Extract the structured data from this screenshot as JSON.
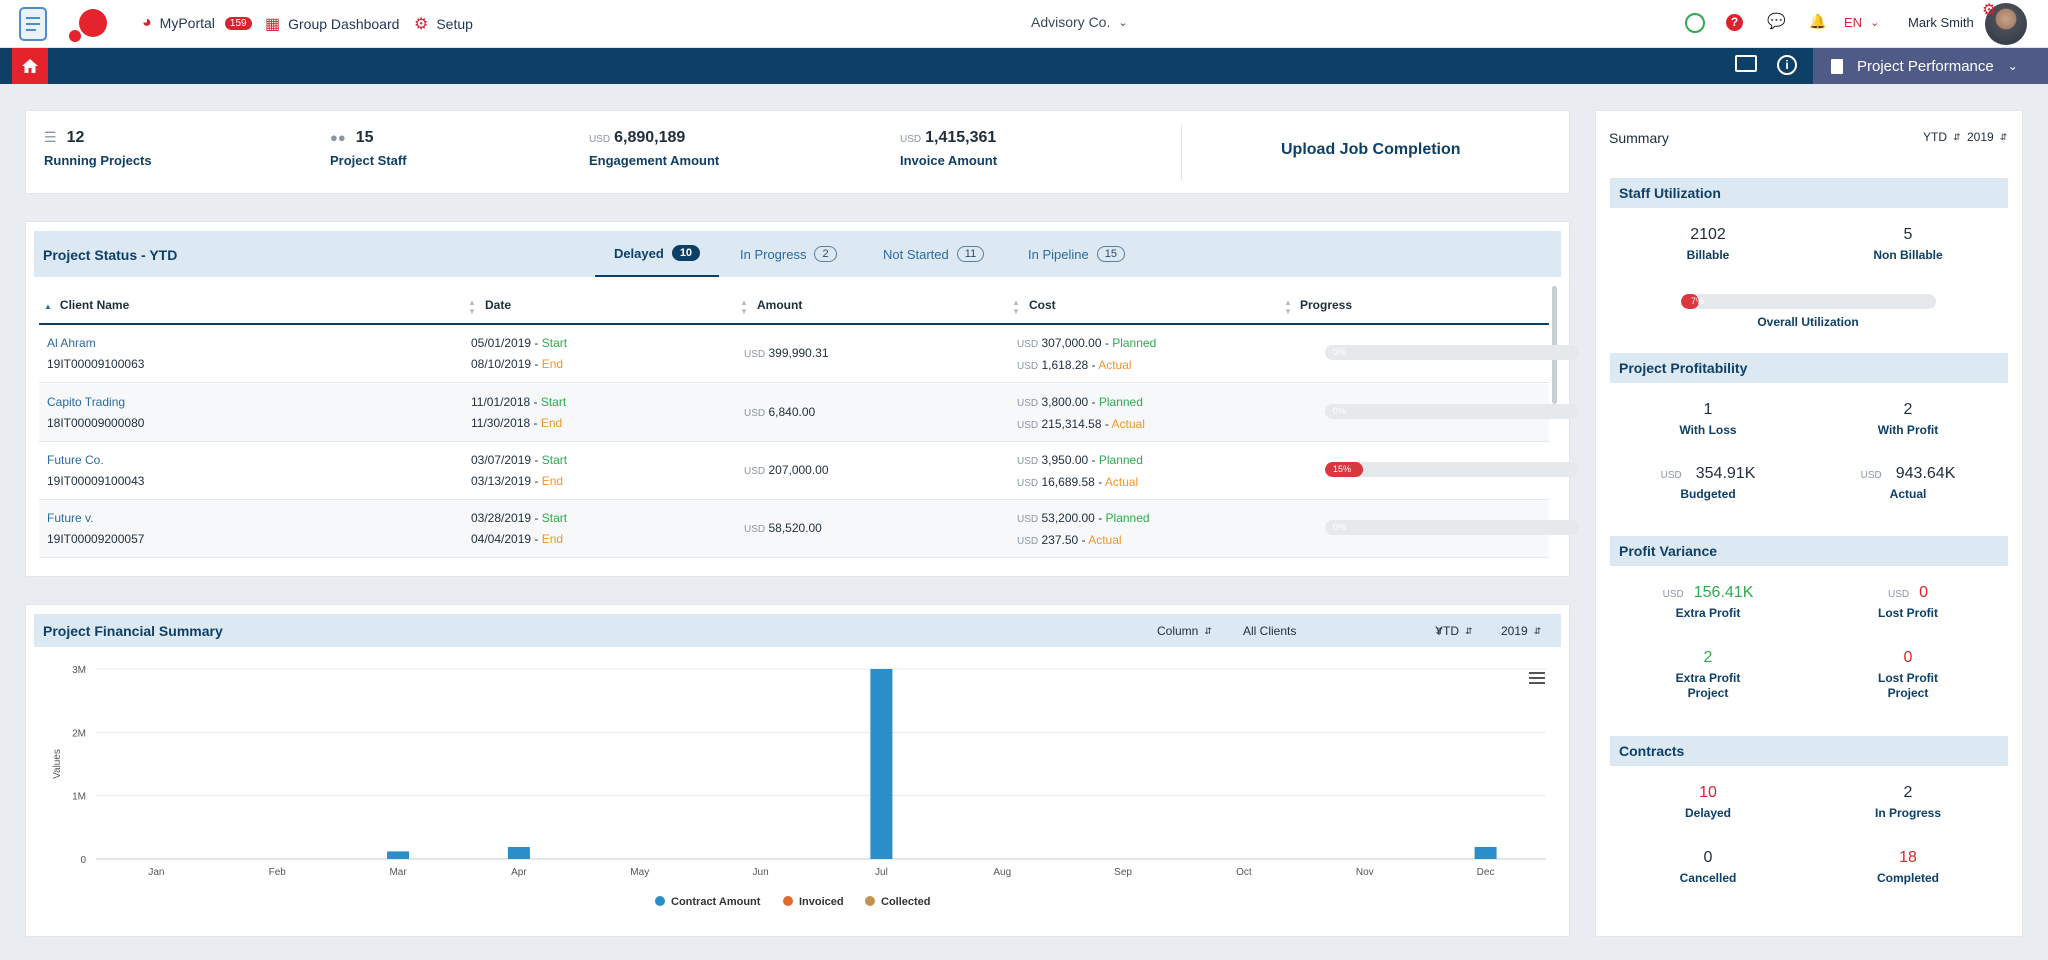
{
  "topbar": {
    "my_portal": "MyPortal",
    "my_portal_badge": "159",
    "group_dashboard": "Group Dashboard",
    "setup": "Setup",
    "company": "Advisory Co.",
    "language": "EN",
    "user": "Mark Smith"
  },
  "navbar": {
    "page_selector": "Project Performance"
  },
  "kpis": [
    {
      "value": "12",
      "currency": "",
      "label": "Running Projects",
      "icon": "list-icon"
    },
    {
      "value": "15",
      "currency": "",
      "label": "Project Staff",
      "icon": "people-icon"
    },
    {
      "value": "6,890,189",
      "currency": "USD",
      "label": "Engagement Amount"
    },
    {
      "value": "1,415,361",
      "currency": "USD",
      "label": "Invoice Amount"
    }
  ],
  "upload_label": "Upload Job Completion",
  "project_status": {
    "title": "Project Status - YTD",
    "tabs": [
      {
        "label": "Delayed",
        "count": "10"
      },
      {
        "label": "In Progress",
        "count": "2"
      },
      {
        "label": "Not Started",
        "count": "11"
      },
      {
        "label": "In Pipeline",
        "count": "15"
      }
    ],
    "columns": [
      "Client Name",
      "Date",
      "Amount",
      "Cost",
      "Progress"
    ],
    "start_label": "Start",
    "end_label": "End",
    "planned_label": "Planned",
    "actual_label": "Actual",
    "currency": "USD",
    "rows": [
      {
        "client": "Al Ahram",
        "code": "19IT00009100063",
        "start": "05/01/2019",
        "end": "08/10/2019",
        "amount": "399,990.31",
        "planned": "307,000.00",
        "actual": "1,618.28",
        "progress": 0,
        "progress_label": "0%"
      },
      {
        "client": "Capito Trading",
        "code": "18IT00009000080",
        "start": "11/01/2018",
        "end": "11/30/2018",
        "amount": "6,840.00",
        "planned": "3,800.00",
        "actual": "215,314.58",
        "progress": 0,
        "progress_label": "0%"
      },
      {
        "client": "Future Co.",
        "code": "19IT00009100043",
        "start": "03/07/2019",
        "end": "03/13/2019",
        "amount": "207,000.00",
        "planned": "3,950.00",
        "actual": "16,689.58",
        "progress": 15,
        "progress_label": "15%"
      },
      {
        "client": "Future v.",
        "code": "19IT00009200057",
        "start": "03/28/2019",
        "end": "04/04/2019",
        "amount": "58,520.00",
        "planned": "53,200.00",
        "actual": "237.50",
        "progress": 0,
        "progress_label": "0%"
      }
    ]
  },
  "financial_summary": {
    "title": "Project Financial Summary",
    "filters": {
      "type": "Column",
      "clients": "All Clients",
      "period": "YTD",
      "year": "2019"
    }
  },
  "chart_data": {
    "type": "bar",
    "title": "",
    "xlabel": "",
    "ylabel": "Values",
    "categories": [
      "Jan",
      "Feb",
      "Mar",
      "Apr",
      "May",
      "Jun",
      "Jul",
      "Aug",
      "Sep",
      "Oct",
      "Nov",
      "Dec"
    ],
    "y_ticks": [
      "0",
      "1M",
      "2M",
      "3M"
    ],
    "ylim": [
      0,
      3000000
    ],
    "grid": true,
    "legend_position": "bottom",
    "series": [
      {
        "name": "Contract Amount",
        "color": "#2b8ec9",
        "values": [
          0,
          0,
          120000,
          190000,
          0,
          0,
          3000000,
          0,
          0,
          0,
          0,
          190000
        ]
      },
      {
        "name": "Invoiced",
        "color": "#e26a2c",
        "values": [
          0,
          0,
          0,
          0,
          0,
          0,
          0,
          0,
          0,
          0,
          0,
          0
        ]
      },
      {
        "name": "Collected",
        "color": "#c0914f",
        "values": [
          0,
          0,
          0,
          0,
          0,
          0,
          0,
          0,
          0,
          0,
          0,
          0
        ]
      }
    ]
  },
  "summary": {
    "title": "Summary",
    "period": "YTD",
    "year": "2019",
    "staff_utilization": {
      "title": "Staff Utilization",
      "billable": "2102",
      "billable_label": "Billable",
      "non_billable": "5",
      "non_billable_label": "Non Billable",
      "overall_label": "Overall Utilization",
      "overall_pct": 7,
      "overall_pct_label": "7%"
    },
    "profitability": {
      "title": "Project Profitability",
      "with_loss": "1",
      "with_loss_label": "With Loss",
      "with_profit": "2",
      "with_profit_label": "With Profit",
      "budgeted": "354.91K",
      "budgeted_label": "Budgeted",
      "actual": "943.64K",
      "actual_label": "Actual",
      "currency": "USD"
    },
    "variance": {
      "title": "Profit Variance",
      "extra_profit": "156.41K",
      "extra_profit_label": "Extra Profit",
      "lost_profit": "0",
      "lost_profit_label": "Lost Profit",
      "extra_profit_project": "2",
      "extra_profit_project_label_1": "Extra Profit",
      "extra_profit_project_label_2": "Project",
      "lost_profit_project": "0",
      "lost_profit_project_label_1": "Lost Profit",
      "lost_profit_project_label_2": "Project",
      "currency": "USD"
    },
    "contracts": {
      "title": "Contracts",
      "delayed": "10",
      "delayed_label": "Delayed",
      "in_progress": "2",
      "in_progress_label": "In Progress",
      "cancelled": "0",
      "cancelled_label": "Cancelled",
      "completed": "18",
      "completed_label": "Completed"
    }
  },
  "colors": {
    "navy": "#0e3f66",
    "accent_red": "#d9232d",
    "green": "#2eaa4f",
    "orange": "#f0962b",
    "bar_blue": "#2b8ec9"
  }
}
